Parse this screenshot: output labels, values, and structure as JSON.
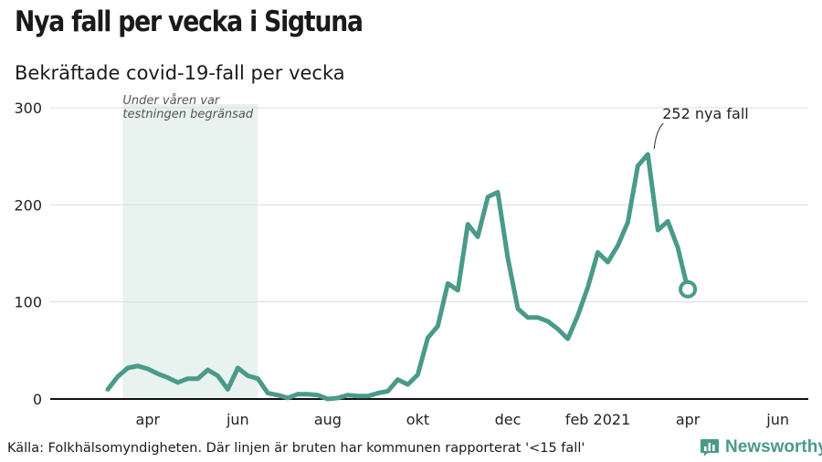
{
  "title": "Nya fall per vecka i Sigtuna",
  "subtitle": "Bekräftade covid-19-fall per vecka",
  "source": "Källa: Folkhälsomyndigheten. Där linjen är bruten har kommunen rapporterat '<15 fall'",
  "brand": {
    "name": "Newsworthy",
    "icon": "bar-chart-logo-icon",
    "color": "#4a9a8a"
  },
  "chart_data": {
    "type": "line",
    "title": "Nya fall per vecka i Sigtuna",
    "subtitle": "Bekräftade covid-19-fall per vecka",
    "xlabel": "",
    "ylabel": "",
    "ylim": [
      0,
      300
    ],
    "y_ticks": [
      0,
      100,
      200,
      300
    ],
    "x_ticks": [
      {
        "label": "apr",
        "week": 4
      },
      {
        "label": "jun",
        "week": 13
      },
      {
        "label": "aug",
        "week": 22
      },
      {
        "label": "okt",
        "week": 31
      },
      {
        "label": "dec",
        "week": 40
      },
      {
        "label": "feb 2021",
        "week": 49
      },
      {
        "label": "apr",
        "week": 58
      },
      {
        "label": "jun",
        "week": 67
      }
    ],
    "grid": true,
    "line_color": "#4a9a8a",
    "shade_color": "#e8f2ef",
    "shaded_region": {
      "start_week": 1.5,
      "end_week": 15,
      "label_lines": [
        "Under våren var",
        "testningen begränsad"
      ]
    },
    "series": [
      {
        "name": "",
        "values": [
          10,
          23,
          32,
          34,
          31,
          26,
          22,
          17,
          21,
          21,
          30,
          24,
          10,
          32,
          24,
          21,
          6,
          4,
          1,
          5,
          5,
          4,
          0,
          1,
          4,
          3,
          3,
          6,
          8,
          20,
          15,
          25,
          63,
          75,
          119,
          112,
          180,
          167,
          208,
          213,
          145,
          93,
          84,
          84,
          80,
          72,
          62,
          86,
          115,
          151,
          141,
          158,
          182,
          240,
          252,
          174,
          183,
          156,
          113
        ]
      }
    ],
    "annotation": {
      "label": "252 nya fall",
      "week": 55,
      "value": 252
    },
    "last_point_marker": true
  }
}
